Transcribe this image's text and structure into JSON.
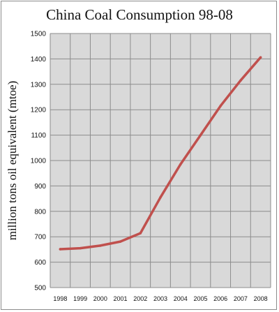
{
  "chart_data": {
    "type": "line",
    "title": "China Coal Consumption 98-08",
    "xlabel": "",
    "ylabel": "million tons oil equivalent (mtoe)",
    "categories": [
      "1998",
      "1999",
      "2000",
      "2001",
      "2002",
      "2003",
      "2004",
      "2005",
      "2006",
      "2007",
      "2008"
    ],
    "series": [
      {
        "values": [
          651,
          655,
          665,
          681,
          714,
          855,
          985,
          1100,
          1215,
          1315,
          1406
        ]
      }
    ],
    "ylim": [
      500,
      1500
    ],
    "yticks": [
      500,
      600,
      700,
      800,
      900,
      1000,
      1100,
      1200,
      1300,
      1400,
      1500
    ],
    "grid": true,
    "legend": "none",
    "colors": {
      "line": "#c0504d",
      "plot_background": "#d9d9d9",
      "grid": "#8c8c8c"
    }
  }
}
